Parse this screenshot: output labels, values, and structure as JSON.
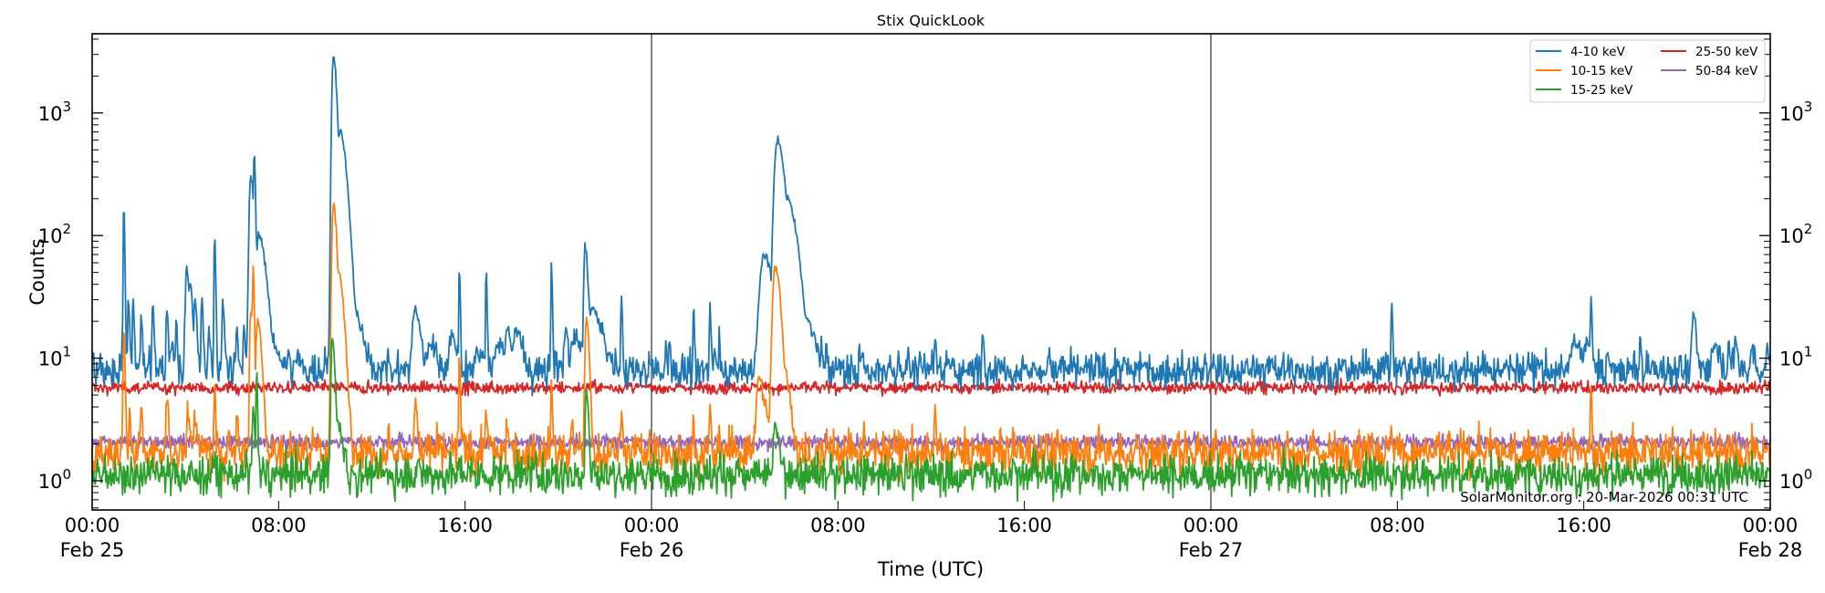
{
  "chart_data": {
    "type": "line",
    "title": "Stix QuickLook",
    "xlabel": "Time (UTC)",
    "ylabel": "Counts",
    "yscale": "log",
    "ylim": [
      0.58,
      4400
    ],
    "xlim_hours": [
      0,
      72
    ],
    "x_ticks": [
      {
        "hour": 0,
        "time": "00:00",
        "date": "Feb 25"
      },
      {
        "hour": 8,
        "time": "08:00",
        "date": ""
      },
      {
        "hour": 16,
        "time": "16:00",
        "date": ""
      },
      {
        "hour": 24,
        "time": "00:00",
        "date": "Feb 26"
      },
      {
        "hour": 32,
        "time": "08:00",
        "date": ""
      },
      {
        "hour": 40,
        "time": "16:00",
        "date": ""
      },
      {
        "hour": 48,
        "time": "00:00",
        "date": "Feb 27"
      },
      {
        "hour": 56,
        "time": "08:00",
        "date": ""
      },
      {
        "hour": 64,
        "time": "16:00",
        "date": ""
      },
      {
        "hour": 72,
        "time": "00:00",
        "date": "Feb 28"
      }
    ],
    "y_ticks": [
      {
        "value": 1,
        "label_base": "10",
        "label_exp": "0"
      },
      {
        "value": 10,
        "label_base": "10",
        "label_exp": "1"
      },
      {
        "value": 100,
        "label_base": "10",
        "label_exp": "2"
      },
      {
        "value": 1000,
        "label_base": "10",
        "label_exp": "3"
      }
    ],
    "day_boundaries_hours": [
      24,
      48
    ],
    "grid": false,
    "legend_position": "upper right",
    "legend_columns": 2,
    "annotation": "SolarMonitor.org : 20-Mar-2026 00:31 UTC",
    "series": [
      {
        "name": "4-10 keV",
        "color": "#1f77b4",
        "baseline": 8.0,
        "noise": 0.07,
        "peaks": [
          [
            1.3,
            17,
            0.05
          ],
          [
            1.35,
            175,
            0.04
          ],
          [
            1.55,
            30,
            0.05
          ],
          [
            1.75,
            30,
            0.05
          ],
          [
            2.1,
            22,
            0.05
          ],
          [
            2.6,
            29,
            0.05
          ],
          [
            3.2,
            28,
            0.05
          ],
          [
            3.4,
            14,
            0.08
          ],
          [
            3.6,
            20,
            0.05
          ],
          [
            4.05,
            55,
            0.1
          ],
          [
            4.2,
            40,
            0.1
          ],
          [
            4.4,
            30,
            0.08
          ],
          [
            4.7,
            33,
            0.05
          ],
          [
            5.0,
            18,
            0.06
          ],
          [
            5.25,
            100,
            0.04
          ],
          [
            5.6,
            30,
            0.06
          ],
          [
            6.2,
            18,
            0.06
          ],
          [
            6.5,
            18,
            0.05
          ],
          [
            6.8,
            300,
            0.12
          ],
          [
            6.95,
            450,
            0.05
          ],
          [
            7.15,
            100,
            0.25
          ],
          [
            7.5,
            15,
            0.4
          ],
          [
            8.4,
            12,
            0.05
          ],
          [
            8.8,
            11,
            0.05
          ],
          [
            10.0,
            11,
            0.05
          ],
          [
            10.3,
            11,
            0.05
          ],
          [
            10.35,
            2900,
            0.12
          ],
          [
            10.6,
            700,
            0.25
          ],
          [
            10.9,
            40,
            0.4
          ],
          [
            12.7,
            12,
            0.05
          ],
          [
            13.85,
            25,
            0.2
          ],
          [
            14.5,
            14,
            0.2
          ],
          [
            15.4,
            15,
            0.2
          ],
          [
            15.75,
            55,
            0.04
          ],
          [
            16.5,
            12,
            0.2
          ],
          [
            16.9,
            50,
            0.04
          ],
          [
            17.4,
            13,
            0.3
          ],
          [
            17.8,
            17,
            0.15
          ],
          [
            18.2,
            18,
            0.2
          ],
          [
            18.4,
            10,
            0.1
          ],
          [
            19.7,
            60,
            0.04
          ],
          [
            20.3,
            18,
            0.1
          ],
          [
            20.7,
            14,
            0.3
          ],
          [
            21.15,
            85,
            0.1
          ],
          [
            21.4,
            25,
            0.4
          ],
          [
            22.7,
            33,
            0.04
          ],
          [
            24.6,
            12,
            0.05
          ],
          [
            24.75,
            14,
            0.04
          ],
          [
            25.8,
            23,
            0.04
          ],
          [
            26.5,
            30,
            0.04
          ],
          [
            26.7,
            12,
            0.05
          ],
          [
            26.9,
            16,
            0.04
          ],
          [
            28.5,
            12,
            0.05
          ],
          [
            28.8,
            70,
            0.3
          ],
          [
            29.0,
            60,
            0.15
          ],
          [
            29.4,
            600,
            0.25
          ],
          [
            29.8,
            200,
            0.35
          ],
          [
            30.2,
            30,
            0.5
          ],
          [
            31.3,
            12,
            0.05
          ],
          [
            31.5,
            14,
            0.04
          ],
          [
            32.9,
            13,
            0.05
          ],
          [
            34.6,
            11,
            0.05
          ],
          [
            35.0,
            11,
            0.05
          ],
          [
            35.5,
            11,
            0.05
          ],
          [
            36.0,
            11,
            0.05
          ],
          [
            36.15,
            16,
            0.04
          ],
          [
            38.2,
            18,
            0.04
          ],
          [
            41.0,
            11,
            0.05
          ],
          [
            45.0,
            10,
            0.05
          ],
          [
            54.1,
            10.5,
            0.05
          ],
          [
            55.5,
            11,
            0.05
          ],
          [
            55.75,
            30,
            0.04
          ],
          [
            63.6,
            13,
            0.3
          ],
          [
            64.1,
            14,
            0.2
          ],
          [
            64.3,
            32,
            0.04
          ],
          [
            65.0,
            11,
            0.05
          ],
          [
            66.4,
            15,
            0.04
          ],
          [
            68.7,
            23,
            0.1
          ],
          [
            69.6,
            13,
            0.2
          ],
          [
            70.2,
            15,
            0.05
          ],
          [
            70.5,
            14,
            0.08
          ],
          [
            71.2,
            12,
            0.1
          ],
          [
            71.85,
            14,
            0.05
          ]
        ]
      },
      {
        "name": "10-15 keV",
        "color": "#ff7f0e",
        "baseline": 1.7,
        "noise": 0.09,
        "peaks": [
          [
            1.35,
            17,
            0.05
          ],
          [
            1.6,
            4,
            0.05
          ],
          [
            2.1,
            4,
            0.05
          ],
          [
            3.2,
            5,
            0.06
          ],
          [
            4.1,
            3.4,
            0.1
          ],
          [
            4.4,
            3.4,
            0.1
          ],
          [
            5.25,
            6,
            0.04
          ],
          [
            6.2,
            4,
            0.05
          ],
          [
            6.8,
            25,
            0.08
          ],
          [
            6.9,
            55,
            0.05
          ],
          [
            7.1,
            20,
            0.15
          ],
          [
            10.35,
            180,
            0.12
          ],
          [
            10.55,
            50,
            0.2
          ],
          [
            12.7,
            2.3,
            0.05
          ],
          [
            13.85,
            4,
            0.1
          ],
          [
            15.75,
            11,
            0.04
          ],
          [
            16.9,
            4,
            0.05
          ],
          [
            17.8,
            3,
            0.06
          ],
          [
            19.7,
            7,
            0.04
          ],
          [
            20.6,
            3,
            0.05
          ],
          [
            21.2,
            22,
            0.1
          ],
          [
            22.7,
            4,
            0.04
          ],
          [
            25.8,
            3,
            0.04
          ],
          [
            26.5,
            4,
            0.04
          ],
          [
            26.9,
            3.2,
            0.04
          ],
          [
            28.6,
            7,
            0.2
          ],
          [
            28.9,
            4,
            0.1
          ],
          [
            29.3,
            55,
            0.2
          ],
          [
            29.7,
            8,
            0.2
          ],
          [
            31.5,
            2.6,
            0.04
          ],
          [
            33.1,
            2.6,
            0.04
          ],
          [
            36.15,
            4.2,
            0.04
          ],
          [
            54.9,
            2.5,
            0.04
          ],
          [
            55.75,
            2.8,
            0.04
          ],
          [
            64.3,
            6,
            0.04
          ],
          [
            67.8,
            2.5,
            0.04
          ]
        ]
      },
      {
        "name": "15-25 keV",
        "color": "#2ca02c",
        "baseline": 1.12,
        "noise": 0.08,
        "peaks": [
          [
            6.9,
            4,
            0.06
          ],
          [
            7.05,
            8,
            0.04
          ],
          [
            10.3,
            14,
            0.1
          ],
          [
            10.5,
            3,
            0.2
          ],
          [
            15.75,
            1.6,
            0.04
          ],
          [
            21.2,
            5.5,
            0.08
          ],
          [
            29.3,
            2.7,
            0.15
          ],
          [
            56.0,
            1.4,
            0.04
          ]
        ]
      },
      {
        "name": "25-50 keV",
        "color": "#d62728",
        "baseline": 5.75,
        "noise": 0.025,
        "peaks": []
      },
      {
        "name": "50-84 keV",
        "color": "#9467bd",
        "baseline": 2.06,
        "noise": 0.03,
        "peaks": []
      }
    ]
  }
}
